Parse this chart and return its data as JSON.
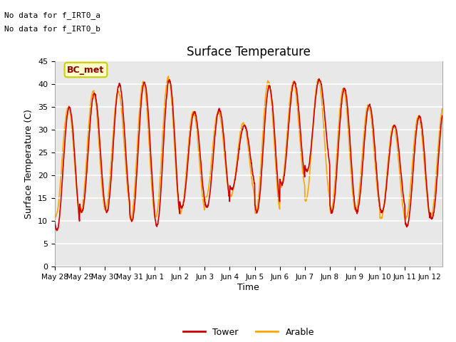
{
  "title": "Surface Temperature",
  "ylabel": "Surface Temperature (C)",
  "xlabel": "Time",
  "ylim": [
    0,
    45
  ],
  "no_data_text": [
    "No data for f_IRT0_a",
    "No data for f_IRT0_b"
  ],
  "bc_met_label": "BC_met",
  "bc_met_bg": "#ffffcc",
  "bc_met_border": "#cccc00",
  "bc_met_text_color": "#8b0000",
  "legend_tower_color": "#cc0000",
  "legend_arable_color": "#ffa500",
  "tower_color": "#cc0000",
  "arable_color": "#ffa500",
  "bg_color": "#e8e8e8",
  "x_tick_labels": [
    "May 28",
    "May 29",
    "May 30",
    "May 31",
    "Jun 1",
    "Jun 2",
    "Jun 3",
    "Jun 4",
    "Jun 5",
    "Jun 6",
    "Jun 7",
    "Jun 8",
    "Jun 9",
    "Jun 10",
    "Jun 11",
    "Jun 12"
  ],
  "grid_color": "white",
  "line_width": 1.2,
  "tower_peaks": [
    35,
    38,
    40,
    40.5,
    41,
    34,
    34.5,
    31,
    39.5,
    40.5,
    41,
    39,
    35.5,
    31,
    33,
    35
  ],
  "tower_mins": [
    8,
    12,
    12,
    10,
    9,
    13,
    13,
    17,
    12,
    18,
    21,
    12,
    12,
    12,
    9,
    10.5
  ],
  "arable_peaks": [
    35,
    38.5,
    38.5,
    40.5,
    41.5,
    34,
    34,
    31.5,
    40.5,
    40.5,
    41,
    39,
    35.5,
    31,
    33,
    35
  ],
  "arable_mins": [
    11,
    12,
    13,
    10.5,
    11,
    12,
    15,
    15.5,
    12,
    17.5,
    14.5,
    12,
    12.5,
    10.5,
    10.5,
    11
  ],
  "arable_phase": 0.54,
  "tower_phase": 0.583
}
